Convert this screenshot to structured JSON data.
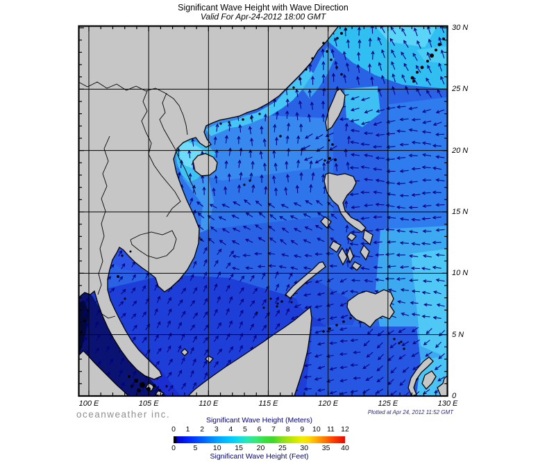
{
  "header": {
    "title": "Significant Wave Height with Wave Direction",
    "subtitle": "Valid For Apr-24-2012 18:00 GMT"
  },
  "footer": {
    "brand": "oceanweather inc.",
    "plotted": "Plotted at Apr 24, 2012 11:52 GMT"
  },
  "map": {
    "lon_tick_values": [
      100,
      105,
      110,
      115,
      120,
      125,
      130
    ],
    "lon_labels": [
      "100 E",
      "105 E",
      "110 E",
      "115 E",
      "120 E",
      "125 E",
      "130 E"
    ],
    "lat_tick_values": [
      30,
      25,
      20,
      15,
      10,
      5,
      0
    ],
    "lat_labels": [
      "30 N",
      "25 N",
      "20 N",
      "15 N",
      "10 N",
      "5 N",
      "0"
    ],
    "grid_lon_lines": [
      100,
      105,
      110,
      115,
      120,
      125
    ],
    "grid_lat_lines": [
      25,
      20,
      15,
      10,
      5
    ],
    "extent": {
      "lon_min": 99.13,
      "lon_max": 130,
      "lat_min": 0,
      "lat_max": 30.17
    },
    "colors": {
      "land": "#c6c6c6",
      "coast": "#000000",
      "grid": "#000000",
      "frame": "#000000",
      "arrow": "#000080",
      "ocean_base": "#2a62e6",
      "ocean_dark_south": "#1e3ed8",
      "ocean_darkest_andaman": "#03083c",
      "ocean_cyan_northeast": "#31bff2"
    },
    "arrow_field": {
      "lon_step": 1,
      "lat_step": 1,
      "zones": [
        {
          "lon": [
            124,
            130.5
          ],
          "lat": [
            23.5,
            30.4
          ],
          "dir": 115,
          "len": 12
        },
        {
          "lon": [
            116.5,
            124
          ],
          "lat": [
            25.2,
            30.4
          ],
          "dir": 95,
          "len": 12
        },
        {
          "lon": [
            121.3,
            130.5
          ],
          "lat": [
            21.5,
            25.2
          ],
          "dir": 192,
          "len": 12
        },
        {
          "lon": [
            118.5,
            121.3
          ],
          "lat": [
            18.5,
            22.3
          ],
          "dir": 205,
          "len": 12
        },
        {
          "lon": [
            121.8,
            130.5
          ],
          "lat": [
            9,
            21.5
          ],
          "dir": 178,
          "len": 12
        },
        {
          "lon": [
            121.8,
            130.5
          ],
          "lat": [
            5.5,
            9
          ],
          "dir": 168,
          "len": 11
        },
        {
          "lon": [
            123,
            130.5
          ],
          "lat": [
            0,
            5.5
          ],
          "dir": 218,
          "len": 11
        },
        {
          "lon": [
            115,
            121.3
          ],
          "lat": [
            21,
            25.2
          ],
          "dir": 92,
          "len": 11
        },
        {
          "lon": [
            105,
            121.8
          ],
          "lat": [
            15.5,
            21.5
          ],
          "dir": 90,
          "len": 11
        },
        {
          "lon": [
            109,
            121.3
          ],
          "lat": [
            12,
            15.5
          ],
          "dir": 148,
          "len": 11
        },
        {
          "lon": [
            112.5,
            121
          ],
          "lat": [
            9.5,
            12
          ],
          "dir": 172,
          "len": 10
        },
        {
          "lon": [
            105,
            109
          ],
          "lat": [
            11.5,
            15.5
          ],
          "dir": 80,
          "len": 10
        },
        {
          "lon": [
            117.5,
            122.5
          ],
          "lat": [
            4.5,
            9.5
          ],
          "dir": 200,
          "len": 10
        },
        {
          "lon": [
            115,
            123
          ],
          "lat": [
            0,
            4.5
          ],
          "dir": 190,
          "len": 10
        },
        {
          "lon": [
            99,
            105.5
          ],
          "lat": [
            5.5,
            13.5
          ],
          "dir": 52,
          "len": 9
        },
        {
          "lon": [
            99,
            102
          ],
          "lat": [
            0,
            5.5
          ],
          "dir": 58,
          "len": 9
        },
        {
          "lon": [
            102,
            117
          ],
          "lat": [
            0,
            11.5
          ],
          "dir": 60,
          "len": 10
        }
      ],
      "default": {
        "dir": 90,
        "len": 10
      }
    }
  },
  "legend": {
    "meters_label": "Significant Wave Height (Meters)",
    "feet_label": "Significant Wave Height (Feet)",
    "meters_ticks": [
      "0",
      "1",
      "2",
      "3",
      "4",
      "5",
      "6",
      "7",
      "8",
      "9",
      "10",
      "11",
      "12"
    ],
    "meters_tick_values": [
      0,
      1,
      2,
      3,
      4,
      5,
      6,
      7,
      8,
      9,
      10,
      11,
      12
    ],
    "feet_ticks": [
      "0",
      "5",
      "10",
      "15",
      "20",
      "25",
      "30",
      "35",
      "40"
    ],
    "feet_tick_values": [
      0,
      5,
      10,
      15,
      20,
      25,
      30,
      35,
      40
    ],
    "meters_max": 12,
    "gradient_stops": [
      [
        "0%",
        "#000000"
      ],
      [
        "1.5%",
        "#000000"
      ],
      [
        "2%",
        "#0000d0"
      ],
      [
        "8%",
        "#0020ff"
      ],
      [
        "17%",
        "#0060ff"
      ],
      [
        "25%",
        "#00a0ff"
      ],
      [
        "33%",
        "#00c8ff"
      ],
      [
        "38%",
        "#10dce8"
      ],
      [
        "43%",
        "#28e8b0"
      ],
      [
        "48%",
        "#38e878"
      ],
      [
        "53%",
        "#38e040"
      ],
      [
        "58%",
        "#40d828"
      ],
      [
        "64%",
        "#90e018"
      ],
      [
        "70%",
        "#c8e800"
      ],
      [
        "75%",
        "#f0ee00"
      ],
      [
        "79%",
        "#ffd800"
      ],
      [
        "83%",
        "#ffb000"
      ],
      [
        "88%",
        "#ff7800"
      ],
      [
        "93%",
        "#ff4000"
      ],
      [
        "100%",
        "#e80800"
      ]
    ]
  }
}
